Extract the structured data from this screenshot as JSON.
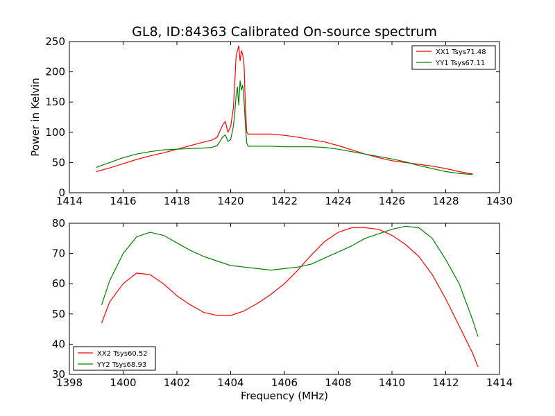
{
  "chart_data": [
    {
      "type": "line",
      "title": "GL8, ID:84363 Calibrated On-source spectrum",
      "xlabel": "",
      "ylabel": "Power in Kelvin",
      "xlim": [
        1414,
        1430
      ],
      "ylim": [
        0,
        250
      ],
      "xticks": [
        1414,
        1416,
        1418,
        1420,
        1422,
        1424,
        1426,
        1428,
        1430
      ],
      "yticks": [
        0,
        50,
        100,
        150,
        200,
        250
      ],
      "grid": false,
      "legend_position": "top-right",
      "series": [
        {
          "name": "XX1 Tsys71.48",
          "color": "#ff0000",
          "x": [
            1415,
            1415.5,
            1416,
            1416.5,
            1417,
            1417.5,
            1418,
            1418.5,
            1419,
            1419.3,
            1419.5,
            1419.7,
            1419.8,
            1419.9,
            1420.0,
            1420.1,
            1420.15,
            1420.2,
            1420.25,
            1420.3,
            1420.35,
            1420.4,
            1420.45,
            1420.5,
            1420.55,
            1420.6,
            1420.65,
            1420.7,
            1420.8,
            1421,
            1421.5,
            1422,
            1422.5,
            1423,
            1423.5,
            1424,
            1424.5,
            1425,
            1425.5,
            1426,
            1426.5,
            1427,
            1427.5,
            1428,
            1428.5,
            1429
          ],
          "y": [
            35,
            41,
            48,
            55,
            61,
            66,
            72,
            78,
            84,
            87,
            92,
            112,
            118,
            100,
            110,
            140,
            180,
            225,
            235,
            243,
            218,
            235,
            228,
            210,
            140,
            100,
            97,
            97,
            97,
            97,
            97,
            95,
            92,
            88,
            84,
            78,
            71,
            64,
            58,
            53,
            50,
            47,
            44,
            40,
            35,
            31
          ]
        },
        {
          "name": "YY1 Tsys67.11",
          "color": "#008000",
          "x": [
            1415,
            1415.5,
            1416,
            1416.5,
            1417,
            1417.5,
            1418,
            1418.5,
            1419,
            1419.3,
            1419.5,
            1419.7,
            1419.8,
            1419.9,
            1420.0,
            1420.1,
            1420.15,
            1420.2,
            1420.25,
            1420.3,
            1420.35,
            1420.4,
            1420.45,
            1420.5,
            1420.55,
            1420.6,
            1420.65,
            1420.7,
            1420.8,
            1421,
            1421.5,
            1422,
            1422.5,
            1423,
            1423.5,
            1424,
            1424.5,
            1425,
            1425.5,
            1426,
            1426.5,
            1427,
            1427.5,
            1428,
            1428.5,
            1429
          ],
          "y": [
            42,
            50,
            58,
            64,
            68,
            71,
            72,
            73,
            74,
            75,
            78,
            92,
            96,
            85,
            88,
            110,
            130,
            160,
            175,
            145,
            185,
            170,
            178,
            150,
            110,
            82,
            77,
            77,
            77,
            77,
            77,
            76,
            76,
            76,
            75,
            72,
            68,
            64,
            60,
            56,
            51,
            45,
            40,
            35,
            32,
            30
          ]
        }
      ]
    },
    {
      "type": "line",
      "title": "",
      "xlabel": "Frequency (MHz)",
      "ylabel": "",
      "xlim": [
        1398,
        1414
      ],
      "ylim": [
        30,
        80
      ],
      "xticks": [
        1398,
        1400,
        1402,
        1404,
        1406,
        1408,
        1410,
        1412,
        1414
      ],
      "yticks": [
        30,
        40,
        50,
        60,
        70,
        80
      ],
      "grid": false,
      "legend_position": "bottom-left",
      "series": [
        {
          "name": "XX2 Tsys60.52",
          "color": "#ff0000",
          "x": [
            1399.2,
            1399.5,
            1400,
            1400.5,
            1401,
            1401.5,
            1402,
            1402.5,
            1403,
            1403.5,
            1404,
            1404.5,
            1405,
            1405.5,
            1406,
            1406.5,
            1407,
            1407.5,
            1408,
            1408.5,
            1409,
            1409.5,
            1410,
            1410.5,
            1411,
            1411.5,
            1412,
            1412.5,
            1413,
            1413.2
          ],
          "y": [
            47,
            54,
            60,
            63.5,
            63,
            60,
            56,
            53,
            50.5,
            49.5,
            49.5,
            51,
            53.5,
            56.5,
            60,
            64.5,
            69.5,
            74,
            77,
            78.5,
            78.5,
            78,
            76,
            73,
            69,
            63,
            55,
            46,
            37,
            32.5
          ]
        },
        {
          "name": "YY2 Tsys68.93",
          "color": "#008000",
          "x": [
            1399.2,
            1399.5,
            1400,
            1400.5,
            1401,
            1401.5,
            1402,
            1402.5,
            1403,
            1403.5,
            1404,
            1404.5,
            1405,
            1405.5,
            1406,
            1406.5,
            1407,
            1407.5,
            1408,
            1408.5,
            1409,
            1409.5,
            1410,
            1410.5,
            1411,
            1411.5,
            1412,
            1412.5,
            1413,
            1413.2
          ],
          "y": [
            53,
            61,
            70,
            75.5,
            77,
            76,
            73.5,
            71,
            69,
            67.5,
            66,
            65.5,
            65,
            64.5,
            65,
            65.5,
            66.5,
            68.5,
            70.5,
            72.5,
            75,
            76.5,
            78,
            79,
            78.5,
            75,
            68,
            60,
            48,
            42.5
          ]
        }
      ]
    }
  ],
  "colors": {
    "background": "#ffffff",
    "axes": "#000000"
  }
}
